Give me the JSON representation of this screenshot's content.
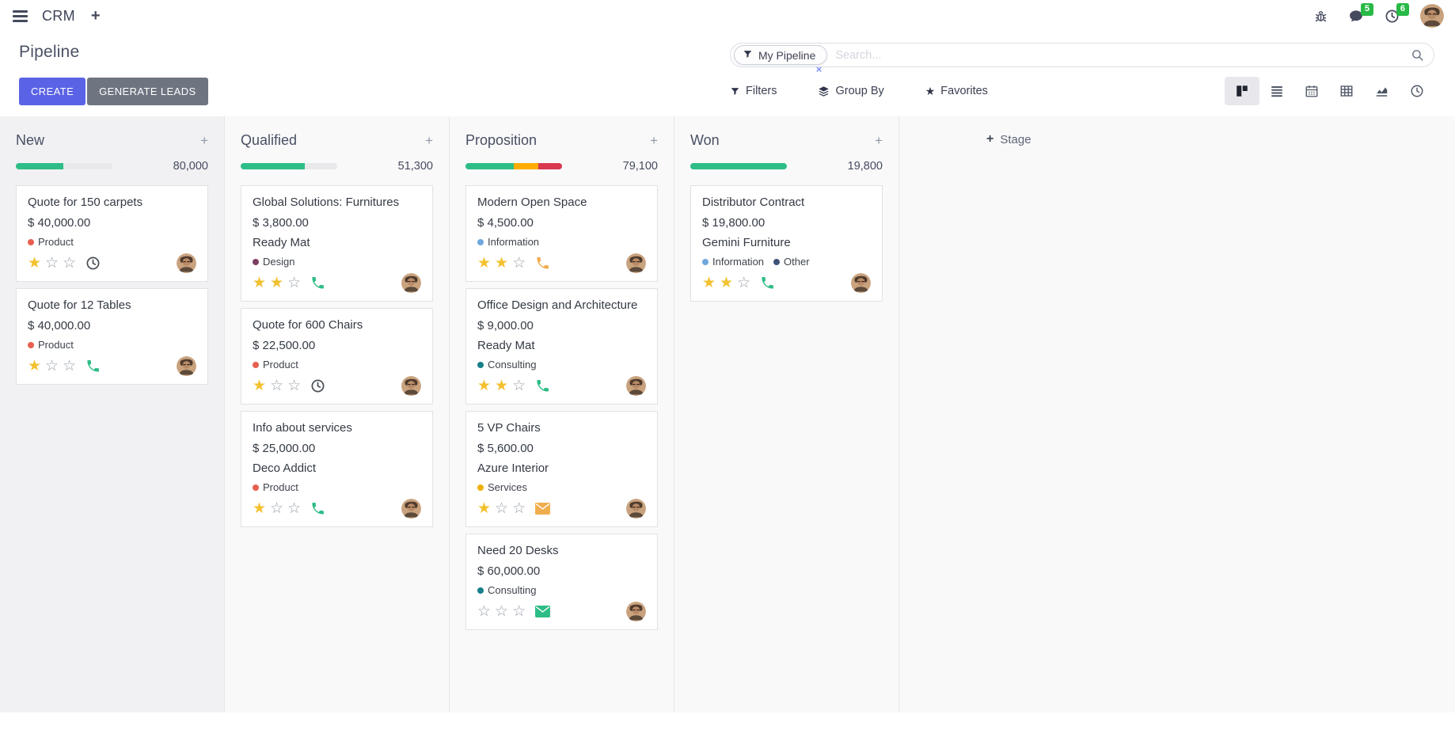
{
  "navbar": {
    "app_name": "CRM",
    "message_badge": "5",
    "activity_badge": "6"
  },
  "control_panel": {
    "title": "Pipeline",
    "buttons": {
      "create": "CREATE",
      "generate_leads": "GENERATE LEADS"
    },
    "search": {
      "facet_label": "My Pipeline",
      "facet_remove": "×",
      "placeholder": "Search..."
    },
    "menus": {
      "filters": "Filters",
      "group_by": "Group By",
      "favorites": "Favorites"
    },
    "view_switcher": [
      "kanban",
      "list",
      "calendar",
      "pivot",
      "graph",
      "activity"
    ],
    "active_view": "kanban"
  },
  "kanban": {
    "add_stage_label": "Stage",
    "columns": [
      {
        "name": "New",
        "total": "80,000",
        "progress": [
          {
            "color": "#2ebd86",
            "pct": 49
          }
        ],
        "cards": [
          {
            "title": "Quote for 150 carpets",
            "revenue": "$ 40,000.00",
            "tags": [
              {
                "label": "Product",
                "color": "#e7604f"
              }
            ],
            "stars": 1,
            "activity": {
              "type": "clock",
              "color": "#495057"
            }
          },
          {
            "title": "Quote for 12 Tables",
            "revenue": "$ 40,000.00",
            "tags": [
              {
                "label": "Product",
                "color": "#e7604f"
              }
            ],
            "stars": 1,
            "activity": {
              "type": "phone",
              "color": "#2ebd86"
            }
          }
        ]
      },
      {
        "name": "Qualified",
        "total": "51,300",
        "progress": [
          {
            "color": "#2ebd86",
            "pct": 66
          }
        ],
        "cards": [
          {
            "title": "Global Solutions: Furnitures",
            "revenue": "$ 3,800.00",
            "company": "Ready Mat",
            "tags": [
              {
                "label": "Design",
                "color": "#7c3f63"
              }
            ],
            "stars": 2,
            "activity": {
              "type": "phone",
              "color": "#2ebd86"
            }
          },
          {
            "title": "Quote for 600 Chairs",
            "revenue": "$ 22,500.00",
            "tags": [
              {
                "label": "Product",
                "color": "#e7604f"
              }
            ],
            "stars": 1,
            "activity": {
              "type": "clock",
              "color": "#495057"
            }
          },
          {
            "title": "Info about services",
            "revenue": "$ 25,000.00",
            "company": "Deco Addict",
            "tags": [
              {
                "label": "Product",
                "color": "#e7604f"
              }
            ],
            "stars": 1,
            "activity": {
              "type": "phone",
              "color": "#2ebd86"
            }
          }
        ]
      },
      {
        "name": "Proposition",
        "total": "79,100",
        "progress": [
          {
            "color": "#2ebd86",
            "pct": 50
          },
          {
            "color": "#ffac00",
            "pct": 25
          },
          {
            "color": "#d9394f",
            "pct": 25
          }
        ],
        "cards": [
          {
            "title": "Modern Open Space",
            "revenue": "$ 4,500.00",
            "tags": [
              {
                "label": "Information",
                "color": "#6fa8dc"
              }
            ],
            "stars": 2,
            "activity": {
              "type": "phone",
              "color": "#f0ad4e"
            }
          },
          {
            "title": "Office Design and Architecture",
            "revenue": "$ 9,000.00",
            "company": "Ready Mat",
            "tags": [
              {
                "label": "Consulting",
                "color": "#17808b"
              }
            ],
            "stars": 2,
            "activity": {
              "type": "phone",
              "color": "#2ebd86"
            }
          },
          {
            "title": "5 VP Chairs",
            "revenue": "$ 5,600.00",
            "company": "Azure Interior",
            "tags": [
              {
                "label": "Services",
                "color": "#f0b009"
              }
            ],
            "stars": 1,
            "activity": {
              "type": "envelope",
              "color": "#f0ad4e"
            }
          },
          {
            "title": "Need 20 Desks",
            "revenue": "$ 60,000.00",
            "tags": [
              {
                "label": "Consulting",
                "color": "#17808b"
              }
            ],
            "stars": 0,
            "activity": {
              "type": "envelope",
              "color": "#2ebd86"
            }
          }
        ]
      },
      {
        "name": "Won",
        "total": "19,800",
        "progress": [
          {
            "color": "#2ebd86",
            "pct": 100
          }
        ],
        "cards": [
          {
            "title": "Distributor Contract",
            "revenue": "$ 19,800.00",
            "company": "Gemini Furniture",
            "tags": [
              {
                "label": "Information",
                "color": "#6fa8dc"
              },
              {
                "label": "Other",
                "color": "#3f5379"
              }
            ],
            "stars": 2,
            "activity": {
              "type": "phone",
              "color": "#2ebd86"
            }
          }
        ]
      }
    ]
  },
  "colors": {
    "primary": "#5a63e6",
    "secondary_button": "#6e7580",
    "badge_green": "#28b946",
    "progress_green": "#2ebd86",
    "progress_yellow": "#ffac00",
    "progress_red": "#d9394f",
    "star_gold": "#f2c12e"
  }
}
